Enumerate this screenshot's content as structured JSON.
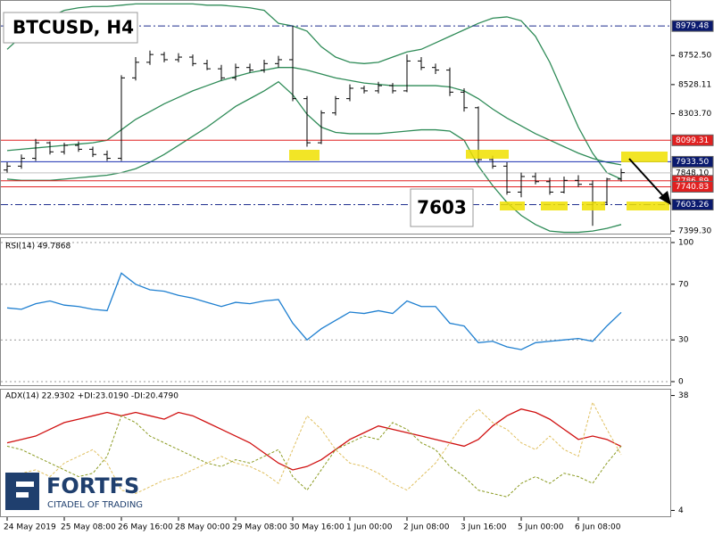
{
  "chart_data": [
    {
      "type": "ohlc",
      "title": "BTCUSD, H4",
      "annotation": "7603",
      "categories": [
        "24 May 2019",
        null,
        null,
        null,
        "25 May 08:00",
        null,
        null,
        null,
        "26 May 16:00",
        null,
        null,
        null,
        "28 May 00:00",
        null,
        null,
        null,
        "29 May 08:00",
        null,
        null,
        null,
        "30 May 16:00",
        null,
        null,
        null,
        "1 Jun 00:00",
        null,
        null,
        null,
        "2 Jun 08:00",
        null,
        null,
        null,
        "3 Jun 16:00",
        null,
        null,
        null,
        "5 Jun 00:00",
        null,
        null,
        null,
        "6 Jun 08:00",
        null,
        null,
        null
      ],
      "open": [
        7870,
        7900,
        7960,
        8080,
        8010,
        8060,
        8030,
        7990,
        7960,
        8580,
        8700,
        8760,
        8720,
        8740,
        8690,
        8650,
        8580,
        8660,
        8640,
        8690,
        8720,
        8420,
        8080,
        8310,
        8420,
        8500,
        8480,
        8520,
        8480,
        8710,
        8660,
        8640,
        8470,
        8350,
        7950,
        7900,
        7700,
        7820,
        7780,
        7700,
        7790,
        7760,
        7620,
        7800
      ],
      "high": [
        7930,
        7990,
        8110,
        8090,
        8080,
        8090,
        8050,
        8020,
        8600,
        8740,
        8790,
        8780,
        8770,
        8760,
        8720,
        8680,
        8690,
        8690,
        8720,
        8750,
        8979.48,
        8440,
        8330,
        8440,
        8530,
        8520,
        8550,
        8540,
        8760,
        8740,
        8690,
        8660,
        8500,
        8360,
        7980,
        7930,
        7850,
        7850,
        7810,
        7820,
        7830,
        7790,
        7810,
        7880
      ],
      "low": [
        7850,
        7880,
        7940,
        7990,
        7990,
        8010,
        7970,
        7940,
        7940,
        8560,
        8680,
        8700,
        8700,
        8670,
        8640,
        8560,
        8560,
        8620,
        8620,
        8660,
        8400,
        8050,
        8070,
        8290,
        8400,
        8460,
        8460,
        8460,
        8470,
        8640,
        8610,
        8440,
        8320,
        7920,
        7880,
        7680,
        7660,
        7760,
        7680,
        7690,
        7740,
        7440,
        7600,
        7780
      ],
      "close": [
        7900,
        7960,
        8080,
        8010,
        8060,
        8030,
        7990,
        7960,
        8580,
        8700,
        8760,
        8720,
        8740,
        8690,
        8650,
        8580,
        8660,
        8640,
        8690,
        8720,
        8420,
        8080,
        8310,
        8420,
        8500,
        8480,
        8520,
        8480,
        8710,
        8660,
        8640,
        8470,
        8350,
        7950,
        7900,
        7700,
        7820,
        7780,
        7700,
        7790,
        7760,
        7620,
        7800,
        7850
      ],
      "bar_color": "#000000",
      "bands": [
        {
          "color": "#2e8b57",
          "values": [
            8800,
            8900,
            9000,
            9050,
            9100,
            9120,
            9130,
            9130,
            9140,
            9150,
            9150,
            9150,
            9150,
            9150,
            9140,
            9140,
            9130,
            9120,
            9100,
            9000,
            8980,
            8940,
            8820,
            8740,
            8700,
            8690,
            8700,
            8740,
            8780,
            8800,
            8850,
            8900,
            8950,
            9000,
            9040,
            9050,
            9020,
            8900,
            8700,
            8450,
            8200,
            8000,
            7850,
            7800
          ]
        },
        {
          "color": "#2e8b57",
          "values": [
            8020,
            8030,
            8040,
            8050,
            8060,
            8070,
            8080,
            8100,
            8180,
            8260,
            8320,
            8380,
            8430,
            8480,
            8520,
            8560,
            8590,
            8620,
            8640,
            8660,
            8660,
            8640,
            8610,
            8580,
            8560,
            8540,
            8530,
            8520,
            8520,
            8520,
            8520,
            8510,
            8480,
            8420,
            8340,
            8270,
            8210,
            8150,
            8100,
            8050,
            8000,
            7960,
            7930,
            7910
          ]
        },
        {
          "color": "#2e8b57",
          "values": [
            7800,
            7790,
            7790,
            7790,
            7800,
            7810,
            7820,
            7830,
            7850,
            7880,
            7930,
            7990,
            8060,
            8130,
            8200,
            8280,
            8360,
            8420,
            8480,
            8550,
            8450,
            8300,
            8200,
            8160,
            8150,
            8150,
            8150,
            8160,
            8170,
            8180,
            8180,
            8170,
            8100,
            7900,
            7750,
            7620,
            7520,
            7450,
            7400,
            7390,
            7390,
            7400,
            7420,
            7450
          ]
        }
      ],
      "levels": [
        {
          "price": 8979.48,
          "color": "#1f2f8f",
          "style": "dashdot",
          "box": "#0a1a6e",
          "text_color": "#ffffff"
        },
        {
          "price": 8099.31,
          "color": "#e02020",
          "style": "solid",
          "box": "#e02020",
          "text_color": "#ffffff"
        },
        {
          "price": {
            "value": 7933.5,
            "label": "7933.50"
          },
          "color": "#1a2fb0",
          "style": "solid",
          "box": "#0a1a6e",
          "text_color": "#ffffff"
        },
        {
          "price": {
            "value": 7848.1,
            "label": "7848.10"
          },
          "color": "#c0c0c0",
          "style": "solid",
          "box": "#ffffff",
          "text_color": "#000000"
        },
        {
          "price": 7786.89,
          "color": "#e02020",
          "style": "solid",
          "box": "#e02020",
          "text_color": "#ffffff"
        },
        {
          "price": 7740.83,
          "color": "#e02020",
          "style": "solid",
          "box": "#e02020",
          "text_color": "#ffffff"
        },
        {
          "price": 7603.26,
          "color": "#1f2f8f",
          "style": "dashdot",
          "box": "#0a1a6e",
          "text_color": "#ffffff"
        }
      ],
      "ylim": [
        7380,
        9180
      ],
      "yticks": [
        {
          "value": 8752.5,
          "label": "8752.50"
        },
        {
          "value": 8528.11,
          "label": "8528.11"
        },
        {
          "value": 8303.7,
          "label": "8303.70"
        },
        {
          "value": 7399.3,
          "label": "7399.30"
        }
      ]
    },
    {
      "type": "line",
      "title": "RSI(14) 49.7868",
      "ylim": [
        0,
        100
      ],
      "yticks": [
        100,
        70,
        30,
        0
      ],
      "grid": true,
      "series": [
        {
          "color": "#1e7fd0",
          "values": [
            53,
            52,
            56,
            58,
            55,
            54,
            52,
            51,
            78,
            70,
            66,
            65,
            62,
            60,
            57,
            54,
            57,
            56,
            58,
            59,
            42,
            30,
            38,
            44,
            50,
            49,
            51,
            49,
            58,
            54,
            54,
            42,
            40,
            28,
            29,
            25,
            23,
            28,
            29,
            30,
            31,
            29,
            40,
            49.79
          ]
        }
      ]
    },
    {
      "type": "line",
      "title": "ADX(14) 22.9302 +DI:23.0190 -DI:20.4790",
      "ylim": [
        2,
        40
      ],
      "yticks": [
        38,
        4
      ],
      "grid": false,
      "series": [
        {
          "color": "#d01010",
          "dash": false,
          "values": [
            24,
            25,
            26,
            28,
            30,
            31,
            32,
            33,
            32,
            33,
            32,
            31,
            33,
            32,
            30,
            28,
            26,
            24,
            21,
            18,
            16,
            17,
            19,
            22,
            25,
            27,
            29,
            28,
            27,
            26,
            25,
            24,
            23,
            25,
            29,
            32,
            34,
            33,
            31,
            28,
            25,
            26,
            25,
            22.93
          ]
        },
        {
          "color": "#8a9a20",
          "dash": true,
          "values": [
            23,
            22,
            20,
            18,
            16,
            14,
            15,
            20,
            32,
            30,
            26,
            24,
            22,
            20,
            18,
            17,
            19,
            18,
            20,
            22,
            14,
            10,
            16,
            22,
            24,
            26,
            25,
            30,
            28,
            24,
            22,
            17,
            14,
            10,
            9,
            8,
            12,
            14,
            12,
            15,
            14,
            12,
            18,
            23.02
          ]
        },
        {
          "color": "#e0c060",
          "dash": true,
          "values": [
            14,
            15,
            16,
            14,
            18,
            20,
            22,
            18,
            10,
            9,
            11,
            13,
            14,
            16,
            18,
            20,
            18,
            17,
            15,
            12,
            22,
            32,
            28,
            22,
            18,
            17,
            15,
            12,
            10,
            14,
            18,
            24,
            30,
            34,
            30,
            28,
            24,
            22,
            26,
            22,
            20,
            36,
            28,
            20.48
          ]
        }
      ]
    }
  ],
  "logo": {
    "brand": "FORTFS",
    "tagline": "CITADEL OF TRADING"
  }
}
